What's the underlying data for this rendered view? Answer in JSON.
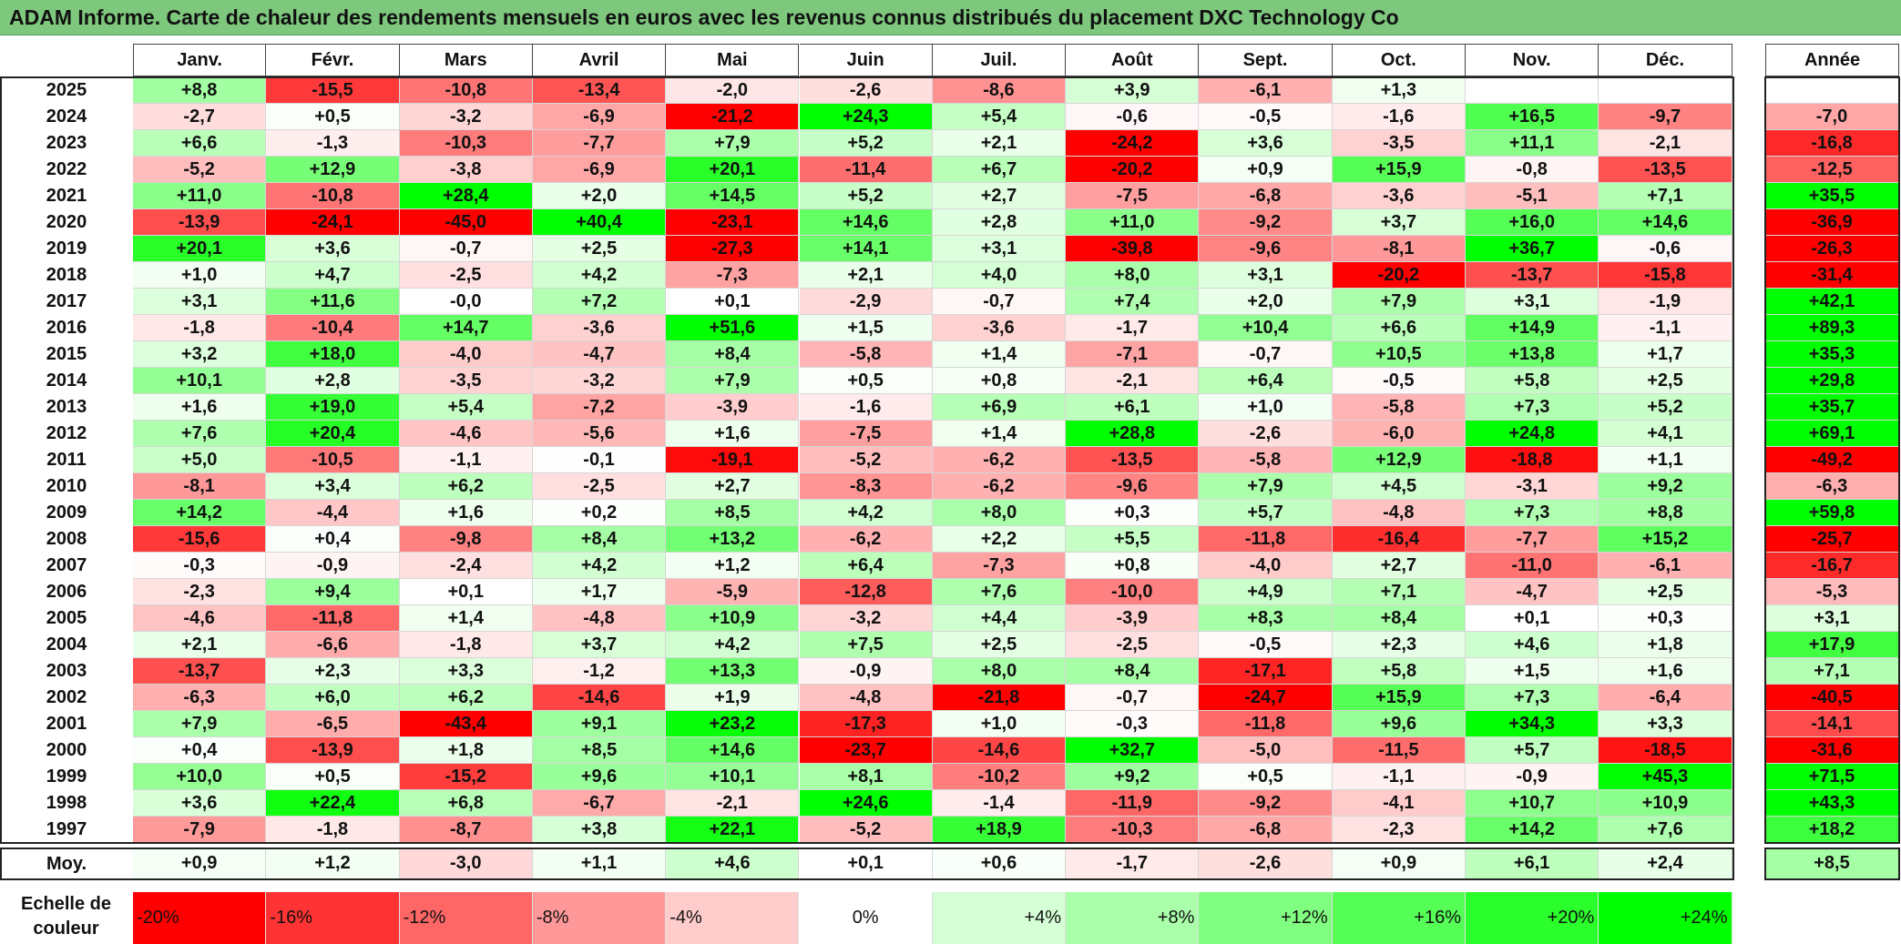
{
  "title": "ADAM Informe. Carte de chaleur des rendements mensuels en euros avec les revenus connus distribués du placement DXC Technology Co",
  "chart_data": {
    "type": "heatmap",
    "columns": [
      "Janv.",
      "Févr.",
      "Mars",
      "Avril",
      "Mai",
      "Juin",
      "Juil.",
      "Août",
      "Sept.",
      "Oct.",
      "Nov.",
      "Déc."
    ],
    "annual_header": "Année",
    "rows": [
      {
        "year": "2025",
        "values": [
          8.8,
          -15.5,
          -10.8,
          -13.4,
          -2.0,
          -2.6,
          -8.6,
          3.9,
          -6.1,
          1.3,
          null,
          null
        ],
        "annual": null
      },
      {
        "year": "2024",
        "values": [
          -2.7,
          0.5,
          -3.2,
          -6.9,
          -21.2,
          24.3,
          5.4,
          -0.6,
          -0.5,
          -1.6,
          16.5,
          -9.7
        ],
        "annual": -7.0
      },
      {
        "year": "2023",
        "values": [
          6.6,
          -1.3,
          -10.3,
          -7.7,
          7.9,
          5.2,
          2.1,
          -24.2,
          3.6,
          -3.5,
          11.1,
          -2.1
        ],
        "annual": -16.8
      },
      {
        "year": "2022",
        "values": [
          -5.2,
          12.9,
          -3.8,
          -6.9,
          20.1,
          -11.4,
          6.7,
          -20.2,
          0.9,
          15.9,
          -0.8,
          -13.5
        ],
        "annual": -12.5
      },
      {
        "year": "2021",
        "values": [
          11.0,
          -10.8,
          28.4,
          2.0,
          14.5,
          5.2,
          2.7,
          -7.5,
          -6.8,
          -3.6,
          -5.1,
          7.1
        ],
        "annual": 35.5
      },
      {
        "year": "2020",
        "values": [
          -13.9,
          -24.1,
          -45.0,
          40.4,
          -23.1,
          14.6,
          2.8,
          11.0,
          -9.2,
          3.7,
          16.0,
          14.6
        ],
        "annual": -36.9
      },
      {
        "year": "2019",
        "values": [
          20.1,
          3.6,
          -0.7,
          2.5,
          -27.3,
          14.1,
          3.1,
          -39.8,
          -9.6,
          -8.1,
          36.7,
          -0.6
        ],
        "annual": -26.3
      },
      {
        "year": "2018",
        "values": [
          1.0,
          4.7,
          -2.5,
          4.2,
          -7.3,
          2.1,
          4.0,
          8.0,
          3.1,
          -20.2,
          -13.7,
          -15.8
        ],
        "annual": -31.4
      },
      {
        "year": "2017",
        "values": [
          3.1,
          11.6,
          -0.0,
          7.2,
          0.1,
          -2.9,
          -0.7,
          7.4,
          2.0,
          7.9,
          3.1,
          -1.9
        ],
        "annual": 42.1
      },
      {
        "year": "2016",
        "values": [
          -1.8,
          -10.4,
          14.7,
          -3.6,
          51.6,
          1.5,
          -3.6,
          -1.7,
          10.4,
          6.6,
          14.9,
          -1.1
        ],
        "annual": 89.3
      },
      {
        "year": "2015",
        "values": [
          3.2,
          18.0,
          -4.0,
          -4.7,
          8.4,
          -5.8,
          1.4,
          -7.1,
          -0.7,
          10.5,
          13.8,
          1.7
        ],
        "annual": 35.3
      },
      {
        "year": "2014",
        "values": [
          10.1,
          2.8,
          -3.5,
          -3.2,
          7.9,
          0.5,
          0.8,
          -2.1,
          6.4,
          -0.5,
          5.8,
          2.5
        ],
        "annual": 29.8
      },
      {
        "year": "2013",
        "values": [
          1.6,
          19.0,
          5.4,
          -7.2,
          -3.9,
          -1.6,
          6.9,
          6.1,
          1.0,
          -5.8,
          7.3,
          5.2
        ],
        "annual": 35.7
      },
      {
        "year": "2012",
        "values": [
          7.6,
          20.4,
          -4.6,
          -5.6,
          1.6,
          -7.5,
          1.4,
          28.8,
          -2.6,
          -6.0,
          24.8,
          4.1
        ],
        "annual": 69.1
      },
      {
        "year": "2011",
        "values": [
          5.0,
          -10.5,
          -1.1,
          -0.1,
          -19.1,
          -5.2,
          -6.2,
          -13.5,
          -5.8,
          12.9,
          -18.8,
          1.1
        ],
        "annual": -49.2
      },
      {
        "year": "2010",
        "values": [
          -8.1,
          3.4,
          6.2,
          -2.5,
          2.7,
          -8.3,
          -6.2,
          -9.6,
          7.9,
          4.5,
          -3.1,
          9.2
        ],
        "annual": -6.3
      },
      {
        "year": "2009",
        "values": [
          14.2,
          -4.4,
          1.6,
          0.2,
          8.5,
          4.2,
          8.0,
          0.3,
          5.7,
          -4.8,
          7.3,
          8.8
        ],
        "annual": 59.8
      },
      {
        "year": "2008",
        "values": [
          -15.6,
          0.4,
          -9.8,
          8.4,
          13.2,
          -6.2,
          2.2,
          5.5,
          -11.8,
          -16.4,
          -7.7,
          15.2
        ],
        "annual": -25.7
      },
      {
        "year": "2007",
        "values": [
          -0.3,
          -0.9,
          -2.4,
          4.2,
          1.2,
          6.4,
          -7.3,
          0.8,
          -4.0,
          2.7,
          -11.0,
          -6.1
        ],
        "annual": -16.7
      },
      {
        "year": "2006",
        "values": [
          -2.3,
          9.4,
          0.1,
          1.7,
          -5.9,
          -12.8,
          7.6,
          -10.0,
          4.9,
          7.1,
          -4.7,
          2.5
        ],
        "annual": -5.3
      },
      {
        "year": "2005",
        "values": [
          -4.6,
          -11.8,
          1.4,
          -4.8,
          10.9,
          -3.2,
          4.4,
          -3.9,
          8.3,
          8.4,
          0.1,
          0.3
        ],
        "annual": 3.1
      },
      {
        "year": "2004",
        "values": [
          2.1,
          -6.6,
          -1.8,
          3.7,
          4.2,
          7.5,
          2.5,
          -2.5,
          -0.5,
          2.3,
          4.6,
          1.8
        ],
        "annual": 17.9
      },
      {
        "year": "2003",
        "values": [
          -13.7,
          2.3,
          3.3,
          -1.2,
          13.3,
          -0.9,
          8.0,
          8.4,
          -17.1,
          5.8,
          1.5,
          1.6
        ],
        "annual": 7.1
      },
      {
        "year": "2002",
        "values": [
          -6.3,
          6.0,
          6.2,
          -14.6,
          1.9,
          -4.8,
          -21.8,
          -0.7,
          -24.7,
          15.9,
          7.3,
          -6.4
        ],
        "annual": -40.5
      },
      {
        "year": "2001",
        "values": [
          7.9,
          -6.5,
          -43.4,
          9.1,
          23.2,
          -17.3,
          1.0,
          -0.3,
          -11.8,
          9.6,
          34.3,
          3.3
        ],
        "annual": -14.1
      },
      {
        "year": "2000",
        "values": [
          0.4,
          -13.9,
          1.8,
          8.5,
          14.6,
          -23.7,
          -14.6,
          32.7,
          -5.0,
          -11.5,
          5.7,
          -18.5
        ],
        "annual": -31.6
      },
      {
        "year": "1999",
        "values": [
          10.0,
          0.5,
          -15.2,
          9.6,
          10.1,
          8.1,
          -10.2,
          9.2,
          0.5,
          -1.1,
          -0.9,
          45.3
        ],
        "annual": 71.5
      },
      {
        "year": "1998",
        "values": [
          3.6,
          22.4,
          6.8,
          -6.7,
          -2.1,
          24.6,
          -1.4,
          -11.9,
          -9.2,
          -4.1,
          10.7,
          10.9
        ],
        "annual": 43.3
      },
      {
        "year": "1997",
        "values": [
          -7.9,
          -1.8,
          -8.7,
          3.8,
          22.1,
          -5.2,
          18.9,
          -10.3,
          -6.8,
          -2.3,
          14.2,
          7.6
        ],
        "annual": 18.2
      }
    ],
    "average": {
      "label": "Moy.",
      "values": [
        0.9,
        1.2,
        -3.0,
        1.1,
        4.6,
        0.1,
        0.6,
        -1.7,
        -2.6,
        0.9,
        6.1,
        2.4
      ],
      "annual": 8.5
    },
    "color_scale": {
      "label_line1": "Echelle de",
      "label_line2": "couleur",
      "stops": [
        "-20%",
        "-16%",
        "-12%",
        "-8%",
        "-4%",
        "0%",
        "+4%",
        "+8%",
        "+12%",
        "+16%",
        "+20%",
        "+24%"
      ],
      "stop_values": [
        -20,
        -16,
        -12,
        -8,
        -4,
        0,
        4,
        8,
        12,
        16,
        20,
        24
      ],
      "negative_color": "#ff0000",
      "neutral_color": "#ffffff",
      "positive_color": "#00ff00"
    }
  }
}
